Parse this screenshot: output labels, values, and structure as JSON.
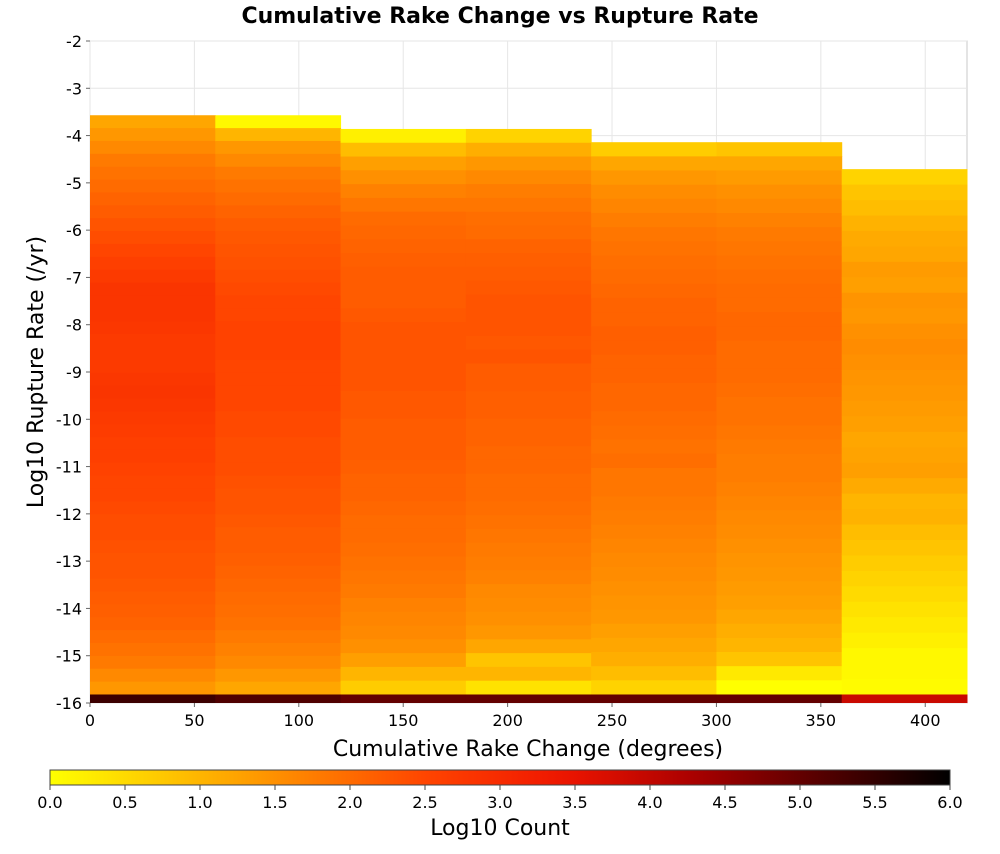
{
  "chart_data": {
    "type": "heatmap",
    "title": "Cumulative Rake Change vs Rupture Rate",
    "xlabel": "Cumulative Rake Change (degrees)",
    "ylabel": "Log10 Rupture Rate (/yr)",
    "xlim": [
      0,
      420
    ],
    "ylim": [
      -16,
      -2
    ],
    "x_ticks": [
      0,
      50,
      100,
      150,
      200,
      250,
      300,
      350,
      400
    ],
    "y_ticks": [
      -16,
      -15,
      -14,
      -13,
      -12,
      -11,
      -10,
      -9,
      -8,
      -7,
      -6,
      -5,
      -4,
      -3,
      -2
    ],
    "grid": true,
    "x_bins": [
      0,
      60,
      120,
      180,
      240,
      300,
      360,
      420
    ],
    "y_bin_width": 0.286,
    "colorbar": {
      "label": "Log10 Count",
      "range": [
        0,
        6
      ],
      "ticks": [
        "0.0",
        "0.5",
        "1.0",
        "1.5",
        "2.0",
        "2.5",
        "3.0",
        "3.5",
        "4.0",
        "4.5",
        "5.0",
        "5.5",
        "6.0"
      ],
      "colormap": [
        "#ffff00",
        "#ffc000",
        "#ff8000",
        "#ff4000",
        "#ee1500",
        "#aa0000",
        "#550000",
        "#000000"
      ]
    },
    "columns": [
      {
        "x_start": 0,
        "x_end": 60,
        "y_top": -3.57,
        "values": [
          1.2,
          1.4,
          1.6,
          1.8,
          1.9,
          2.0,
          2.1,
          2.2,
          2.3,
          2.4,
          2.5,
          2.6,
          2.7,
          2.8,
          2.8,
          2.8,
          2.75,
          2.7,
          2.7,
          2.7,
          2.75,
          2.8,
          2.75,
          2.7,
          2.65,
          2.6,
          2.6,
          2.55,
          2.5,
          2.5,
          2.45,
          2.4,
          2.4,
          2.35,
          2.3,
          2.3,
          2.25,
          2.2,
          2.15,
          2.1,
          2.0,
          1.9,
          1.8,
          1.6,
          1.4
        ]
      },
      {
        "x_start": 60,
        "x_end": 120,
        "y_top": -3.57,
        "values": [
          0.1,
          1.0,
          1.4,
          1.6,
          1.8,
          1.9,
          2.0,
          2.1,
          2.2,
          2.25,
          2.3,
          2.35,
          2.4,
          2.45,
          2.5,
          2.5,
          2.55,
          2.55,
          2.55,
          2.5,
          2.5,
          2.5,
          2.5,
          2.45,
          2.45,
          2.4,
          2.4,
          2.4,
          2.35,
          2.3,
          2.3,
          2.25,
          2.2,
          2.2,
          2.15,
          2.1,
          2.05,
          2.0,
          1.95,
          1.9,
          1.8,
          1.7,
          1.6,
          1.4,
          1.2
        ]
      },
      {
        "x_start": 120,
        "x_end": 180,
        "y_top": -3.86,
        "values": [
          0.2,
          0.9,
          1.3,
          1.5,
          1.7,
          1.85,
          2.0,
          2.05,
          2.1,
          2.15,
          2.2,
          2.2,
          2.2,
          2.25,
          2.3,
          2.3,
          2.3,
          2.3,
          2.3,
          2.25,
          2.25,
          2.2,
          2.2,
          2.2,
          2.15,
          2.1,
          2.1,
          2.05,
          2.0,
          2.0,
          1.95,
          1.9,
          1.85,
          1.8,
          1.7,
          1.65,
          1.6,
          1.5,
          1.3,
          1.0,
          0.7
        ]
      },
      {
        "x_start": 180,
        "x_end": 240,
        "y_top": -3.86,
        "values": [
          0.6,
          1.1,
          1.4,
          1.6,
          1.75,
          1.85,
          1.95,
          2.0,
          2.1,
          2.15,
          2.2,
          2.25,
          2.3,
          2.3,
          2.3,
          2.25,
          2.3,
          2.2,
          2.2,
          2.15,
          2.15,
          2.1,
          2.1,
          2.05,
          2.05,
          2.0,
          2.0,
          1.95,
          1.9,
          1.85,
          1.8,
          1.75,
          1.7,
          1.6,
          1.55,
          1.5,
          1.4,
          1.2,
          0.8,
          1.0,
          0.4
        ]
      },
      {
        "x_start": 240,
        "x_end": 300,
        "y_top": -4.14,
        "values": [
          0.7,
          1.2,
          1.4,
          1.55,
          1.65,
          1.75,
          1.85,
          1.9,
          1.95,
          2.0,
          2.05,
          2.1,
          2.1,
          2.15,
          2.15,
          2.1,
          2.1,
          2.05,
          2.05,
          2.0,
          1.95,
          1.9,
          1.95,
          1.85,
          1.85,
          1.8,
          1.75,
          1.7,
          1.65,
          1.6,
          1.55,
          1.5,
          1.45,
          1.4,
          1.3,
          1.2,
          1.1,
          0.9,
          0.6
        ]
      },
      {
        "x_start": 300,
        "x_end": 360,
        "y_top": -4.14,
        "values": [
          0.8,
          1.2,
          1.35,
          1.5,
          1.6,
          1.7,
          1.8,
          1.85,
          1.9,
          1.95,
          2.0,
          2.0,
          2.05,
          2.05,
          2.0,
          2.0,
          2.0,
          1.95,
          1.9,
          1.9,
          1.85,
          1.8,
          1.75,
          1.75,
          1.7,
          1.65,
          1.6,
          1.55,
          1.5,
          1.45,
          1.4,
          1.35,
          1.3,
          1.2,
          1.1,
          1.0,
          0.8,
          0.3,
          0.0
        ]
      },
      {
        "x_start": 360,
        "x_end": 420,
        "y_top": -4.71,
        "values": [
          0.6,
          0.8,
          0.9,
          1.05,
          1.15,
          1.2,
          1.35,
          1.3,
          1.45,
          1.4,
          1.5,
          1.55,
          1.5,
          1.45,
          1.4,
          1.35,
          1.3,
          1.2,
          1.25,
          1.3,
          1.15,
          1.0,
          1.05,
          0.9,
          0.8,
          0.7,
          0.6,
          0.5,
          0.4,
          0.3,
          0.2,
          0.1,
          0.1,
          0.05
        ]
      }
    ],
    "bottom_row": [
      {
        "x_start": 0,
        "x_end": 60,
        "value": 5.4
      },
      {
        "x_start": 60,
        "x_end": 120,
        "value": 5.2
      },
      {
        "x_start": 120,
        "x_end": 180,
        "value": 5.0
      },
      {
        "x_start": 180,
        "x_end": 240,
        "value": 5.0
      },
      {
        "x_start": 240,
        "x_end": 300,
        "value": 5.0
      },
      {
        "x_start": 300,
        "x_end": 360,
        "value": 5.0
      },
      {
        "x_start": 360,
        "x_end": 420,
        "value": 3.9
      }
    ]
  }
}
